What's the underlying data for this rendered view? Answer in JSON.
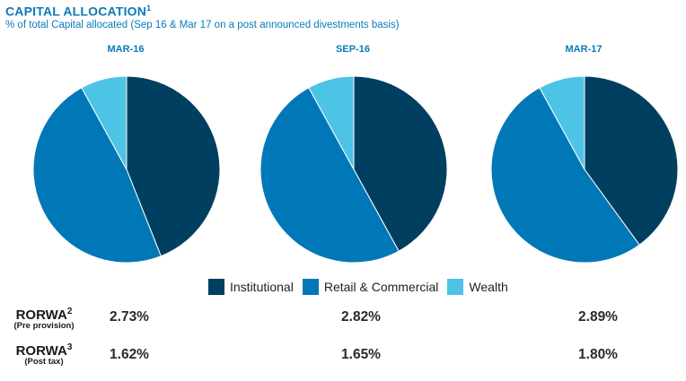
{
  "header": {
    "title": "CAPITAL ALLOCATION",
    "title_sup": "1",
    "subtitle": "% of total Capital allocated (Sep 16 & Mar 17 on a post announced divestments basis)"
  },
  "colors": {
    "institutional": "#003f5f",
    "retail_commercial": "#0078b8",
    "wealth": "#4dc3e6"
  },
  "chart_data": [
    {
      "type": "pie",
      "title": "MAR-16",
      "categories": [
        "Institutional",
        "Retail & Commercial",
        "Wealth"
      ],
      "values": [
        44,
        48,
        8
      ]
    },
    {
      "type": "pie",
      "title": "SEP-16",
      "categories": [
        "Institutional",
        "Retail & Commercial",
        "Wealth"
      ],
      "values": [
        42,
        50,
        8
      ]
    },
    {
      "type": "pie",
      "title": "MAR-17",
      "categories": [
        "Institutional",
        "Retail & Commercial",
        "Wealth"
      ],
      "values": [
        40,
        52,
        8
      ]
    }
  ],
  "legend": {
    "items": [
      "Institutional",
      "Retail & Commercial",
      "Wealth"
    ]
  },
  "metrics": {
    "rorwa_pre": {
      "label": "RORWA",
      "sup": "2",
      "sub": "(Pre provision)",
      "values": [
        "2.73%",
        "2.82%",
        "2.89%"
      ]
    },
    "rorwa_post": {
      "label": "RORWA",
      "sup": "3",
      "sub": "(Post tax)",
      "values": [
        "1.62%",
        "1.65%",
        "1.80%"
      ]
    }
  }
}
